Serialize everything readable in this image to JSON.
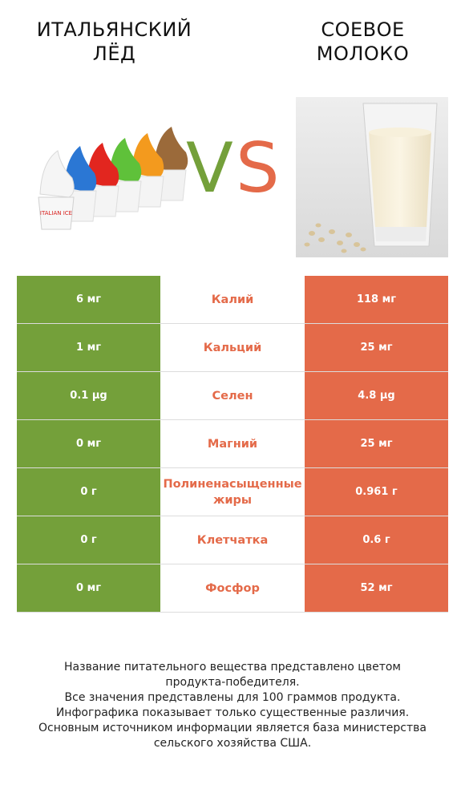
{
  "left_product": {
    "title_line1": "ИТАЛЬЯНСКИЙ",
    "title_line2": "ЛЁД",
    "color": "#74a03a",
    "icon": "ice-cream-cups-icon"
  },
  "right_product": {
    "title_line1": "СОЕВОЕ",
    "title_line2": "МОЛОКО",
    "color": "#e46a49",
    "icon": "soy-milk-glass-icon"
  },
  "vs_label": {
    "v": "V",
    "s": "S"
  },
  "chart_data": {
    "type": "table",
    "columns": [
      "ИТАЛЬЯНСКИЙ ЛЁД",
      "",
      "СОЕВОЕ МОЛОКО"
    ],
    "rows": [
      {
        "nutrient": "Калий",
        "left": "6 мг",
        "right": "118 мг"
      },
      {
        "nutrient": "Кальций",
        "left": "1 мг",
        "right": "25 мг"
      },
      {
        "nutrient": "Селен",
        "left": "0.1 µg",
        "right": "4.8 µg"
      },
      {
        "nutrient": "Магний",
        "left": "0 мг",
        "right": "25 мг"
      },
      {
        "nutrient": "Полиненасыщенные жиры",
        "left": "0 г",
        "right": "0.961 г"
      },
      {
        "nutrient": "Клетчатка",
        "left": "0 г",
        "right": "0.6 г"
      },
      {
        "nutrient": "Фосфор",
        "left": "0 мг",
        "right": "52 мг"
      }
    ]
  },
  "footer": {
    "line1": "Название питательного вещества представлено цветом",
    "line2": "продукта-победителя.",
    "line3": "Все значения представлены для 100 граммов продукта.",
    "line4": "Инфографика показывает только существенные различия.",
    "line5": "Основным источником информации является база министерства",
    "line6": "сельского хозяйства США."
  }
}
